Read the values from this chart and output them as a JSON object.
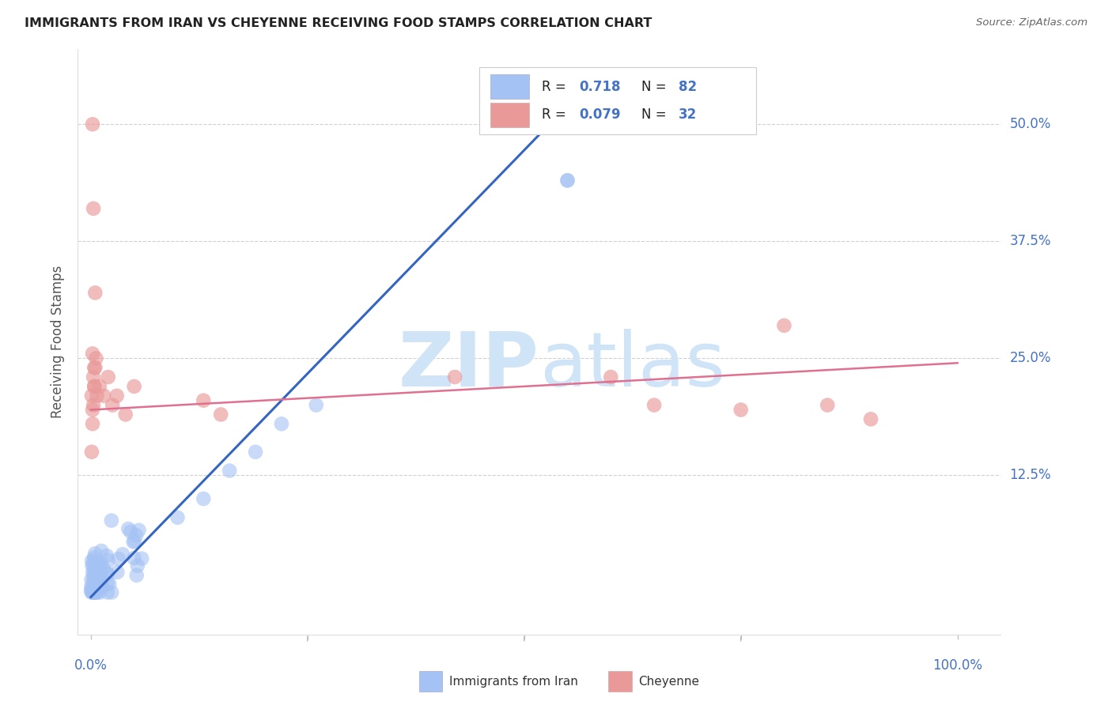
{
  "title": "IMMIGRANTS FROM IRAN VS CHEYENNE RECEIVING FOOD STAMPS CORRELATION CHART",
  "source": "Source: ZipAtlas.com",
  "ylabel": "Receiving Food Stamps",
  "legend_blue_R": "0.718",
  "legend_blue_N": "82",
  "legend_pink_R": "0.079",
  "legend_pink_N": "32",
  "blue_color": "#a4c2f4",
  "pink_color": "#ea9999",
  "line_blue": "#3465c0",
  "line_pink": "#e07090",
  "legend_text_color": "#4472C4",
  "watermark_color": "#d0e4f7",
  "title_color": "#222222",
  "source_color": "#666666",
  "axis_label_color": "#4472C4",
  "ylabel_color": "#555555",
  "grid_color": "#d0d0d0",
  "blue_line_x0": 0.0,
  "blue_line_y0": -0.005,
  "blue_line_x1": 0.55,
  "blue_line_y1": 0.52,
  "pink_line_x0": 0.0,
  "pink_line_y0": 0.195,
  "pink_line_x1": 1.0,
  "pink_line_y1": 0.245,
  "ylim_min": -0.045,
  "ylim_max": 0.58,
  "xlim_min": -0.015,
  "xlim_max": 1.05
}
